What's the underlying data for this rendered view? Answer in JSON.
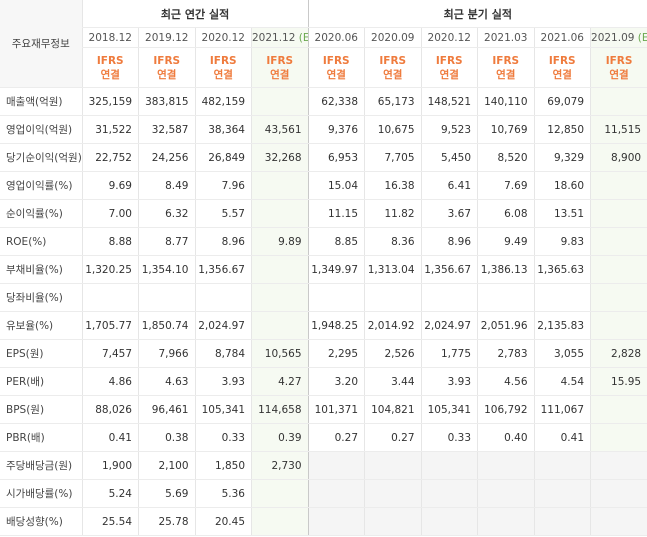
{
  "header": {
    "corner": "주요재무정보",
    "annual_title": "최근 연간 실적",
    "quarter_title": "최근 분기 실적",
    "periods": [
      {
        "date": "2018.12"
      },
      {
        "date": "2019.12"
      },
      {
        "date": "2020.12"
      },
      {
        "date": "2021.12",
        "mark": "(E)"
      },
      {
        "date": "2020.06"
      },
      {
        "date": "2020.09"
      },
      {
        "date": "2020.12"
      },
      {
        "date": "2021.03"
      },
      {
        "date": "2021.06"
      },
      {
        "date": "2021.09",
        "mark": "(E)"
      }
    ],
    "basis": [
      "IFRS",
      "연결"
    ]
  },
  "table": {
    "groups": [
      {
        "rows": [
          {
            "label": "매출액(억원)",
            "values": [
              "325,159",
              "383,815",
              "482,159",
              null,
              "62,338",
              "65,173",
              "148,521",
              "140,110",
              "69,079",
              null
            ]
          },
          {
            "label": "영업이익(억원)",
            "values": [
              "31,522",
              "32,587",
              "38,364",
              "43,561",
              "9,376",
              "10,675",
              "9,523",
              "10,769",
              "12,850",
              "11,515"
            ]
          },
          {
            "label": "당기순이익(억원)",
            "values": [
              "22,752",
              "24,256",
              "26,849",
              "32,268",
              "6,953",
              "7,705",
              "5,450",
              "8,520",
              "9,329",
              "8,900"
            ]
          }
        ]
      },
      {
        "rows": [
          {
            "label": "영업이익률(%)",
            "values": [
              "9.69",
              "8.49",
              "7.96",
              null,
              "15.04",
              "16.38",
              "6.41",
              "7.69",
              "18.60",
              null
            ]
          },
          {
            "label": "순이익률(%)",
            "values": [
              "7.00",
              "6.32",
              "5.57",
              null,
              "11.15",
              "11.82",
              "3.67",
              "6.08",
              "13.51",
              null
            ]
          },
          {
            "label": "ROE(%)",
            "values": [
              "8.88",
              "8.77",
              "8.96",
              "9.89",
              "8.85",
              "8.36",
              "8.96",
              "9.49",
              "9.83",
              null
            ]
          }
        ]
      },
      {
        "rows": [
          {
            "label": "부채비율(%)",
            "values": [
              "1,320.25",
              "1,354.10",
              "1,356.67",
              null,
              "1,349.97",
              "1,313.04",
              "1,356.67",
              "1,386.13",
              "1,365.63",
              null
            ]
          },
          {
            "label": "당좌비율(%)",
            "values": [
              null,
              null,
              null,
              null,
              null,
              null,
              null,
              null,
              null,
              null
            ]
          },
          {
            "label": "유보율(%)",
            "values": [
              "1,705.77",
              "1,850.74",
              "2,024.97",
              null,
              "1,948.25",
              "2,014.92",
              "2,024.97",
              "2,051.96",
              "2,135.83",
              null
            ]
          }
        ]
      },
      {
        "rows": [
          {
            "label": "EPS(원)",
            "values": [
              "7,457",
              "7,966",
              "8,784",
              "10,565",
              "2,295",
              "2,526",
              "1,775",
              "2,783",
              "3,055",
              "2,828"
            ]
          },
          {
            "label": "PER(배)",
            "values": [
              "4.86",
              "4.63",
              "3.93",
              "4.27",
              "3.20",
              "3.44",
              "3.93",
              "4.56",
              "4.54",
              "15.95"
            ]
          },
          {
            "label": "BPS(원)",
            "values": [
              "88,026",
              "96,461",
              "105,341",
              "114,658",
              "101,371",
              "104,821",
              "105,341",
              "106,792",
              "111,067",
              null
            ]
          },
          {
            "label": "PBR(배)",
            "values": [
              "0.41",
              "0.38",
              "0.33",
              "0.39",
              "0.27",
              "0.27",
              "0.33",
              "0.40",
              "0.41",
              null
            ]
          }
        ]
      },
      {
        "rows": [
          {
            "label": "주당배당금(원)",
            "values": [
              "1,900",
              "2,100",
              "1,850",
              "2,730",
              null,
              null,
              null,
              null,
              null,
              null
            ]
          },
          {
            "label": "시가배당률(%)",
            "values": [
              "5.24",
              "5.69",
              "5.36",
              null,
              null,
              null,
              null,
              null,
              null,
              null
            ]
          },
          {
            "label": "배당성향(%)",
            "values": [
              "25.54",
              "25.78",
              "20.45",
              null,
              null,
              null,
              null,
              null,
              null,
              null
            ]
          }
        ]
      }
    ]
  }
}
